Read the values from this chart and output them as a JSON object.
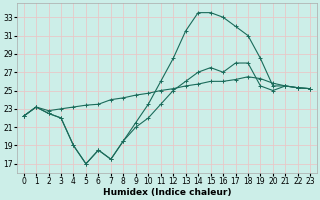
{
  "xlabel": "Humidex (Indice chaleur)",
  "xlim": [
    -0.5,
    23.5
  ],
  "ylim": [
    16.0,
    34.5
  ],
  "xticks": [
    0,
    1,
    2,
    3,
    4,
    5,
    6,
    7,
    8,
    9,
    10,
    11,
    12,
    13,
    14,
    15,
    16,
    17,
    18,
    19,
    20,
    21,
    22,
    23
  ],
  "yticks": [
    17,
    19,
    21,
    23,
    25,
    27,
    29,
    31,
    33
  ],
  "background_color": "#cceee8",
  "grid_color": "#e8c8c8",
  "line_color": "#1a6b5a",
  "line1_x": [
    0,
    1,
    2,
    3,
    4,
    5,
    6,
    7,
    8,
    9,
    10,
    11,
    12,
    13,
    14,
    15,
    16,
    17,
    18,
    19,
    20,
    21,
    22,
    23
  ],
  "line1_y": [
    22.2,
    23.2,
    22.5,
    22.0,
    19.0,
    17.0,
    18.5,
    17.5,
    19.5,
    21.0,
    22.0,
    23.5,
    25.0,
    26.0,
    27.0,
    27.5,
    27.0,
    28.0,
    28.0,
    25.5,
    25.0,
    25.5,
    25.3,
    25.2
  ],
  "line2_x": [
    0,
    1,
    2,
    3,
    4,
    5,
    6,
    7,
    8,
    9,
    10,
    11,
    12,
    13,
    14,
    15,
    16,
    17,
    18,
    19,
    20,
    21,
    22,
    23
  ],
  "line2_y": [
    22.2,
    23.2,
    22.8,
    23.0,
    23.2,
    23.4,
    23.5,
    24.0,
    24.2,
    24.5,
    24.7,
    25.0,
    25.2,
    25.5,
    25.7,
    26.0,
    26.0,
    26.2,
    26.5,
    26.3,
    25.8,
    25.5,
    25.3,
    25.2
  ],
  "line3_x": [
    0,
    1,
    2,
    3,
    4,
    5,
    6,
    7,
    8,
    9,
    10,
    11,
    12,
    13,
    14,
    15,
    16,
    17,
    18,
    19,
    20,
    21,
    22,
    23
  ],
  "line3_y": [
    22.2,
    23.2,
    22.5,
    22.0,
    19.0,
    17.0,
    18.5,
    17.5,
    19.5,
    21.5,
    23.5,
    26.0,
    28.5,
    31.5,
    33.5,
    33.5,
    33.0,
    32.0,
    31.0,
    28.5,
    25.5,
    25.5,
    25.3,
    25.2
  ]
}
